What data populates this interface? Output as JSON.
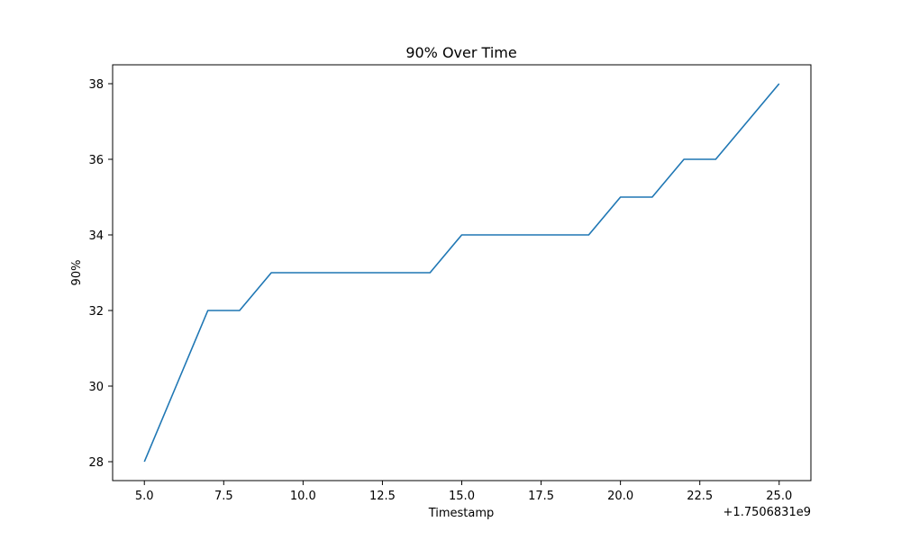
{
  "chart_data": {
    "type": "line",
    "title": "90% Over Time",
    "xlabel": "Timestamp",
    "ylabel": "90%",
    "x_offset_label": "+1.7506831e9",
    "x": [
      5,
      6,
      7,
      8,
      9,
      10,
      11,
      12,
      13,
      14,
      15,
      16,
      17,
      18,
      19,
      20,
      21,
      22,
      23,
      24,
      25
    ],
    "series": [
      {
        "values": [
          28,
          30,
          32,
          32,
          33,
          33,
          33,
          33,
          33,
          33,
          34,
          34,
          34,
          34,
          34,
          35,
          35,
          36,
          36,
          37,
          38
        ],
        "color": "#1f77b4"
      }
    ],
    "xlim": [
      4,
      26
    ],
    "ylim": [
      27.5,
      38.5
    ],
    "xticks": [
      5.0,
      7.5,
      10.0,
      12.5,
      15.0,
      17.5,
      20.0,
      22.5,
      25.0
    ],
    "xtick_labels": [
      "5.0",
      "7.5",
      "10.0",
      "12.5",
      "15.0",
      "17.5",
      "20.0",
      "22.5",
      "25.0"
    ],
    "yticks": [
      28,
      30,
      32,
      34,
      36,
      38
    ],
    "ytick_labels": [
      "28",
      "30",
      "32",
      "34",
      "36",
      "38"
    ],
    "grid": false,
    "legend": "none"
  }
}
